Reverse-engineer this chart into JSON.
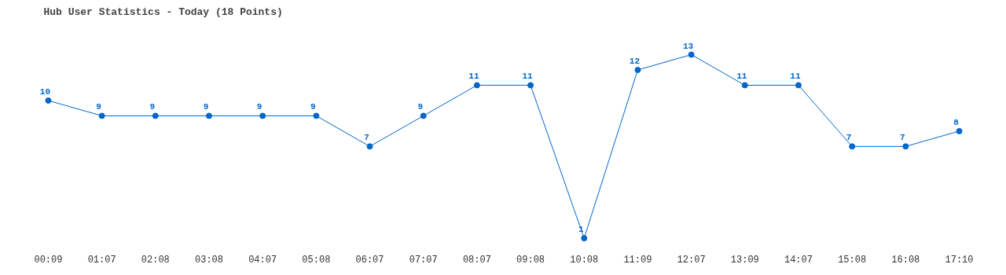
{
  "chart_data": {
    "type": "line",
    "title": "Hub User Statistics - Today (18 Points)",
    "categories": [
      "00:09",
      "01:07",
      "02:08",
      "03:08",
      "04:07",
      "05:08",
      "06:07",
      "07:07",
      "08:07",
      "09:08",
      "10:08",
      "11:09",
      "12:07",
      "13:09",
      "14:07",
      "15:08",
      "16:08",
      "17:10"
    ],
    "series": [
      {
        "color": "#0066cc",
        "values": [
          10,
          9,
          9,
          9,
          9,
          9,
          7,
          9,
          11,
          11,
          1,
          12,
          13,
          11,
          11,
          7,
          7,
          8
        ]
      }
    ],
    "tick_labels": "x",
    "grid": false,
    "marker": "circle",
    "line_style": "solid",
    "data_labels": true
  }
}
